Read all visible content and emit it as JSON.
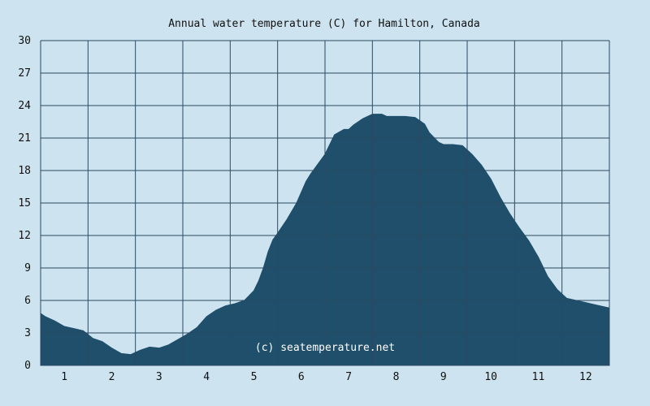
{
  "colors": {
    "background": "#cde3ef",
    "area_fill": "#1f4f6b",
    "grid": "#2b4a63",
    "text": "#111111",
    "watermark": "#ffffff"
  },
  "chart_data": {
    "type": "area",
    "title": "Annual water temperature (C) for Hamilton, Canada",
    "watermark": "(c) seatemperature.net",
    "xlabel": "",
    "ylabel": "",
    "x_unit": "month",
    "xlim": [
      0.5,
      12.5
    ],
    "ylim": [
      0,
      30
    ],
    "grid": true,
    "xticks": [
      1,
      2,
      3,
      4,
      5,
      6,
      7,
      8,
      9,
      10,
      11,
      12
    ],
    "xtick_labels": [
      "1",
      "2",
      "3",
      "4",
      "5",
      "6",
      "7",
      "8",
      "9",
      "10",
      "11",
      "12"
    ],
    "yticks": [
      0,
      3,
      6,
      9,
      12,
      15,
      18,
      21,
      24,
      27,
      30
    ],
    "ytick_labels": [
      "0",
      "3",
      "6",
      "9",
      "12",
      "15",
      "18",
      "21",
      "24",
      "27",
      "30"
    ],
    "series": [
      {
        "x": [
          0.5,
          0.6,
          0.8,
          1.0,
          1.2,
          1.4,
          1.6,
          1.8,
          2.0,
          2.2,
          2.4,
          2.6,
          2.8,
          3.0,
          3.2,
          3.4,
          3.6,
          3.8,
          4.0,
          4.2,
          4.4,
          4.6,
          4.8,
          5.0,
          5.1,
          5.2,
          5.3,
          5.4,
          5.5,
          5.7,
          5.9,
          6.0,
          6.1,
          6.2,
          6.3,
          6.5,
          6.7,
          6.9,
          7.0,
          7.1,
          7.3,
          7.5,
          7.6,
          7.7,
          7.8,
          8.0,
          8.2,
          8.4,
          8.6,
          8.7,
          8.9,
          9.0,
          9.2,
          9.4,
          9.6,
          9.8,
          10.0,
          10.2,
          10.4,
          10.6,
          10.8,
          11.0,
          11.2,
          11.4,
          11.6,
          11.8,
          12.0,
          12.2,
          12.5
        ],
        "values": [
          4.8,
          4.5,
          4.1,
          3.6,
          3.4,
          3.2,
          2.5,
          2.2,
          1.6,
          1.1,
          1.0,
          1.4,
          1.7,
          1.6,
          1.9,
          2.4,
          2.9,
          3.5,
          4.5,
          5.1,
          5.5,
          5.7,
          6.0,
          6.9,
          7.8,
          9.0,
          10.5,
          11.6,
          12.2,
          13.5,
          15.0,
          16.0,
          17.0,
          17.7,
          18.3,
          19.5,
          21.3,
          21.8,
          21.8,
          22.2,
          22.8,
          23.2,
          23.2,
          23.2,
          23.0,
          23.0,
          23.0,
          22.9,
          22.3,
          21.5,
          20.6,
          20.4,
          20.4,
          20.3,
          19.5,
          18.5,
          17.2,
          15.5,
          14.0,
          12.7,
          11.5,
          10.0,
          8.2,
          7.0,
          6.2,
          6.0,
          5.8,
          5.6,
          5.3
        ]
      }
    ]
  }
}
